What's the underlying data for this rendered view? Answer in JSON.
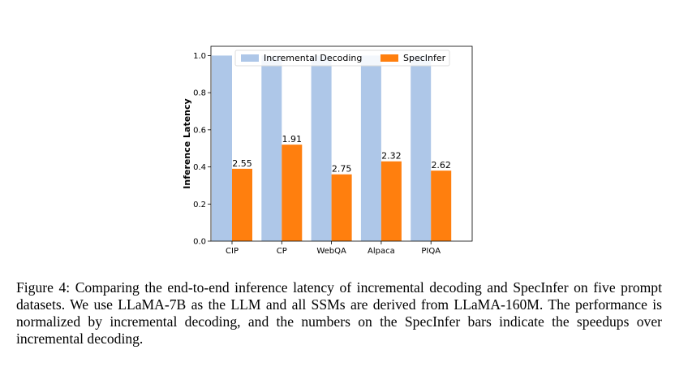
{
  "chart_data": {
    "type": "bar",
    "categories": [
      "CIP",
      "CP",
      "WebQA",
      "Alpaca",
      "PIQA"
    ],
    "series": [
      {
        "name": "Incremental Decoding",
        "color": "#aec7e8",
        "values": [
          1.0,
          1.0,
          1.0,
          1.0,
          1.0
        ]
      },
      {
        "name": "SpecInfer",
        "color": "#ff7f0e",
        "values": [
          0.39,
          0.52,
          0.36,
          0.43,
          0.38
        ],
        "labels": [
          "2.55",
          "1.91",
          "2.75",
          "2.32",
          "2.62"
        ]
      }
    ],
    "ylabel": "Inference Latency",
    "xlabel": "",
    "ylim": [
      0,
      1.05
    ],
    "yticks": [
      "0.0",
      "0.2",
      "0.4",
      "0.6",
      "0.8",
      "1.0"
    ],
    "legend": "top-center",
    "grid": false
  },
  "caption": "Figure 4: Comparing the end-to-end inference latency of incremental decoding and SpecInfer on five prompt datasets. We use LLaMA-7B as the LLM and all SSMs are derived from LLaMA-160M. The performance is normalized by incremental decoding, and the numbers on the SpecInfer bars indicate the speedups over incremental decoding."
}
